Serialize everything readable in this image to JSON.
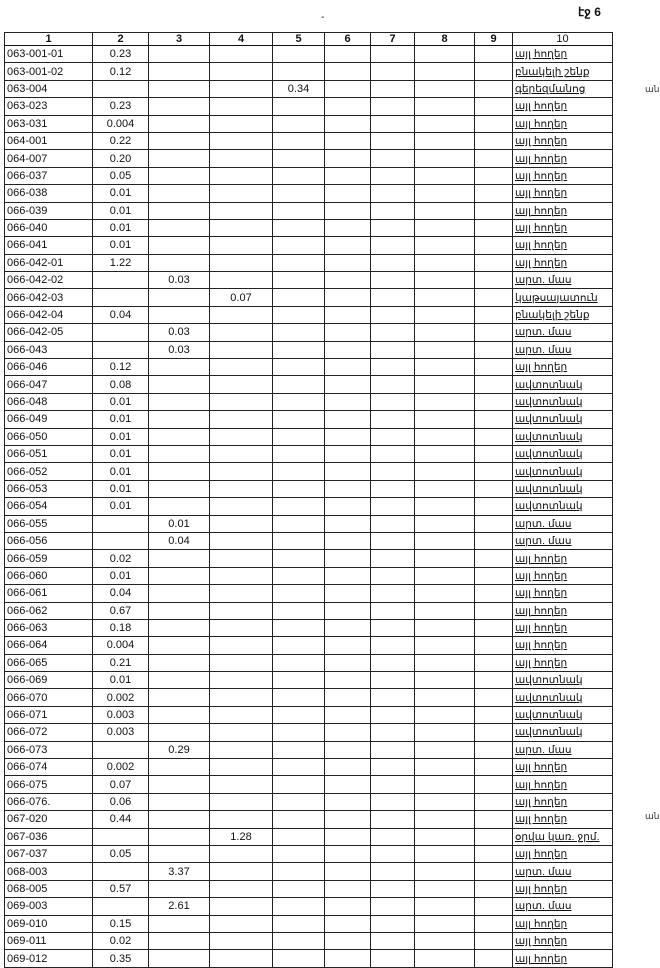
{
  "page_number": "էջ 6",
  "top_mark": "-",
  "margin_mark": "ան",
  "columns": [
    "1",
    "2",
    "3",
    "4",
    "5",
    "6",
    "7",
    "8",
    "9",
    "10"
  ],
  "rows": [
    [
      "063-001-01",
      "0.23",
      "",
      "",
      "",
      "",
      "",
      "",
      "",
      "այլ հողեր"
    ],
    [
      "063-001-02",
      "0.12",
      "",
      "",
      "",
      "",
      "",
      "",
      "",
      "բնակելի շենք"
    ],
    [
      "063-004",
      "",
      "",
      "",
      "0.34",
      "",
      "",
      "",
      "",
      "գերեզմանոց"
    ],
    [
      "063-023",
      "0.23",
      "",
      "",
      "",
      "",
      "",
      "",
      "",
      "այլ հողեր"
    ],
    [
      "063-031",
      "0.004",
      "",
      "",
      "",
      "",
      "",
      "",
      "",
      "այլ հողեր"
    ],
    [
      "064-001",
      "0.22",
      "",
      "",
      "",
      "",
      "",
      "",
      "",
      "այլ հողեր"
    ],
    [
      "064-007",
      "0.20",
      "",
      "",
      "",
      "",
      "",
      "",
      "",
      "այլ հողեր"
    ],
    [
      "066-037",
      "0.05",
      "",
      "",
      "",
      "",
      "",
      "",
      "",
      "այլ հողեր"
    ],
    [
      "066-038",
      "0.01",
      "",
      "",
      "",
      "",
      "",
      "",
      "",
      "այլ հողեր"
    ],
    [
      "066-039",
      "0.01",
      "",
      "",
      "",
      "",
      "",
      "",
      "",
      "այլ հողեր"
    ],
    [
      "066-040",
      "0.01",
      "",
      "",
      "",
      "",
      "",
      "",
      "",
      "այլ հողեր"
    ],
    [
      "066-041",
      "0.01",
      "",
      "",
      "",
      "",
      "",
      "",
      "",
      "այլ հողեր"
    ],
    [
      "066-042-01",
      "1.22",
      "",
      "",
      "",
      "",
      "",
      "",
      "",
      "այլ հողեր"
    ],
    [
      "066-042-02",
      "",
      "0.03",
      "",
      "",
      "",
      "",
      "",
      "",
      "արտ. մաս"
    ],
    [
      "066-042-03",
      "",
      "",
      "0.07",
      "",
      "",
      "",
      "",
      "",
      "կաթսայատուն"
    ],
    [
      "066-042-04",
      "0.04",
      "",
      "",
      "",
      "",
      "",
      "",
      "",
      "բնակելի շենք"
    ],
    [
      "066-042-05",
      "",
      "0.03",
      "",
      "",
      "",
      "",
      "",
      "",
      "արտ. մաս"
    ],
    [
      "066-043",
      "",
      "0.03",
      "",
      "",
      "",
      "",
      "",
      "",
      "արտ. մաս"
    ],
    [
      "066-046",
      "0.12",
      "",
      "",
      "",
      "",
      "",
      "",
      "",
      "այլ հողեր"
    ],
    [
      "066-047",
      "0.08",
      "",
      "",
      "",
      "",
      "",
      "",
      "",
      "ավտոտնակ"
    ],
    [
      "066-048",
      "0.01",
      "",
      "",
      "",
      "",
      "",
      "",
      "",
      "ավտոտնակ"
    ],
    [
      "066-049",
      "0.01",
      "",
      "",
      "",
      "",
      "",
      "",
      "",
      "ավտոտնակ"
    ],
    [
      "066-050",
      "0.01",
      "",
      "",
      "",
      "",
      "",
      "",
      "",
      "ավտոտնակ"
    ],
    [
      "066-051",
      "0.01",
      "",
      "",
      "",
      "",
      "",
      "",
      "",
      "ավտոտնակ"
    ],
    [
      "066-052",
      "0.01",
      "",
      "",
      "",
      "",
      "",
      "",
      "",
      "ավտոտնակ"
    ],
    [
      "066-053",
      "0.01",
      "",
      "",
      "",
      "",
      "",
      "",
      "",
      "ավտոտնակ"
    ],
    [
      "066-054",
      "0.01",
      "",
      "",
      "",
      "",
      "",
      "",
      "",
      "ավտոտնակ"
    ],
    [
      "066-055",
      "",
      "0.01",
      "",
      "",
      "",
      "",
      "",
      "",
      "արտ. մաս"
    ],
    [
      "066-056",
      "",
      "0.04",
      "",
      "",
      "",
      "",
      "",
      "",
      "արտ. մաս"
    ],
    [
      "066-059",
      "0.02",
      "",
      "",
      "",
      "",
      "",
      "",
      "",
      "այլ հողեր"
    ],
    [
      "066-060",
      "0.01",
      "",
      "",
      "",
      "",
      "",
      "",
      "",
      "այլ հողեր"
    ],
    [
      "066-061",
      "0.04",
      "",
      "",
      "",
      "",
      "",
      "",
      "",
      "այլ հողեր"
    ],
    [
      "066-062",
      "0.67",
      "",
      "",
      "",
      "",
      "",
      "",
      "",
      "այլ հողեր"
    ],
    [
      "066-063",
      "0.18",
      "",
      "",
      "",
      "",
      "",
      "",
      "",
      "այլ հողեր"
    ],
    [
      "066-064",
      "0.004",
      "",
      "",
      "",
      "",
      "",
      "",
      "",
      "այլ հողեր"
    ],
    [
      "066-065",
      "0.21",
      "",
      "",
      "",
      "",
      "",
      "",
      "",
      "այլ հողեր"
    ],
    [
      "066-069",
      "0.01",
      "",
      "",
      "",
      "",
      "",
      "",
      "",
      "ավտոտնակ"
    ],
    [
      "066-070",
      "0.002",
      "",
      "",
      "",
      "",
      "",
      "",
      "",
      "ավտոտնակ"
    ],
    [
      "066-071",
      "0.003",
      "",
      "",
      "",
      "",
      "",
      "",
      "",
      "ավտոտնակ"
    ],
    [
      "066-072",
      "0.003",
      "",
      "",
      "",
      "",
      "",
      "",
      "",
      "ավտոտնակ"
    ],
    [
      "066-073",
      "",
      "0.29",
      "",
      "",
      "",
      "",
      "",
      "",
      "արտ. մաս"
    ],
    [
      "066-074",
      "0.002",
      "",
      "",
      "",
      "",
      "",
      "",
      "",
      "այլ հողեր"
    ],
    [
      "066-075",
      "0.07",
      "",
      "",
      "",
      "",
      "",
      "",
      "",
      "այլ հողեր"
    ],
    [
      "066-076.",
      "0.06",
      "",
      "",
      "",
      "",
      "",
      "",
      "",
      "այլ հողեր"
    ],
    [
      "067-020",
      "0.44",
      "",
      "",
      "",
      "",
      "",
      "",
      "",
      "այլ հողեր"
    ],
    [
      "067-036",
      "",
      "",
      "1.28",
      "",
      "",
      "",
      "",
      "",
      "օրվա կառ. ջրմ."
    ],
    [
      "067-037",
      "0.05",
      "",
      "",
      "",
      "",
      "",
      "",
      "",
      "այլ հողեր"
    ],
    [
      "068-003",
      "",
      "3.37",
      "",
      "",
      "",
      "",
      "",
      "",
      "արտ. մաս"
    ],
    [
      "068-005",
      "0.57",
      "",
      "",
      "",
      "",
      "",
      "",
      "",
      "այլ հողեր"
    ],
    [
      "069-003",
      "",
      "2.61",
      "",
      "",
      "",
      "",
      "",
      "",
      "արտ. մաս"
    ],
    [
      "069-010",
      "0.15",
      "",
      "",
      "",
      "",
      "",
      "",
      "",
      "այլ հողեր"
    ],
    [
      "069-011",
      "0.02",
      "",
      "",
      "",
      "",
      "",
      "",
      "",
      "այլ հողեր"
    ],
    [
      "069-012",
      "0.35",
      "",
      "",
      "",
      "",
      "",
      "",
      "",
      "այլ հողեր"
    ]
  ]
}
